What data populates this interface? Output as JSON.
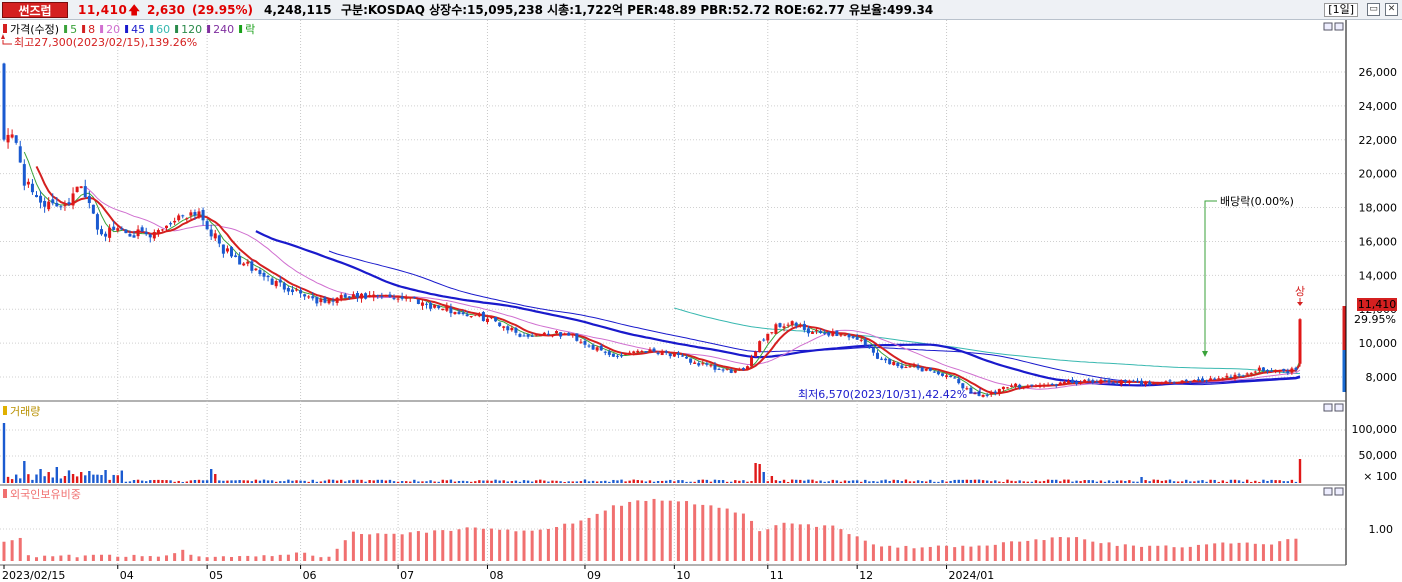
{
  "header": {
    "stock_name": "썬즈럽",
    "price": "11,410",
    "arrow": "🡅",
    "change": "2,630",
    "rate": "(29.95%)",
    "volume": "4,248,115",
    "info": "구분:KOSDAQ 상장수:15,095,238 시총:1,722억 PER:48.89 PBR:52.72 ROE:62.77 유보율:499.34",
    "period": "[1일]",
    "win_min": "▭",
    "win_close": "✕"
  },
  "price_panel": {
    "legend": [
      {
        "label": "가격(수정)",
        "color": "#d42020"
      },
      {
        "label": "5",
        "color": "#3aa23a"
      },
      {
        "label": "8",
        "color": "#d42020"
      },
      {
        "label": "20",
        "color": "#d070d0"
      },
      {
        "label": "45",
        "color": "#1a1acc"
      },
      {
        "label": "60",
        "color": "#38b8b0"
      },
      {
        "label": "120",
        "color": "#2a8a4a"
      },
      {
        "label": "240",
        "color": "#8030a0"
      },
      {
        "label": "락",
        "color": "#18a018"
      }
    ],
    "high_note": "최고27,300(2023/02/15),139.26%",
    "low_note": "최저6,570(2023/10/31),42.42%",
    "dividend_note": "배당락(0.00%)",
    "limit_up_label": "상",
    "price_tag": "11,410",
    "rate_tag": "29.95%",
    "y_ticks": [
      "26,000",
      "24,000",
      "22,000",
      "20,000",
      "18,000",
      "16,000",
      "14,000",
      "12,000",
      "10,000",
      "8,000"
    ],
    "y_tick_values": [
      26000,
      24000,
      22000,
      20000,
      18000,
      16000,
      14000,
      12000,
      10000,
      8000
    ]
  },
  "volume_panel": {
    "legend": "거래량",
    "y_ticks": [
      "100,000",
      "50,000",
      "× 100"
    ]
  },
  "foreign_panel": {
    "legend": "외국인보유비중",
    "y_ticks": [
      "1.00"
    ]
  },
  "x_axis": {
    "labels": [
      "2023/02/15",
      "04",
      "05",
      "06",
      "07",
      "08",
      "09",
      "10",
      "11",
      "12",
      "2024/01"
    ]
  },
  "chart_data": {
    "type": "candlestick",
    "close_anchors": [
      [
        0,
        22400
      ],
      [
        3,
        22000
      ],
      [
        5,
        19500
      ],
      [
        8,
        18600
      ],
      [
        12,
        18000
      ],
      [
        16,
        18400
      ],
      [
        18,
        19500
      ],
      [
        20,
        18600
      ],
      [
        24,
        16400
      ],
      [
        28,
        16800
      ],
      [
        32,
        16500
      ],
      [
        36,
        16200
      ],
      [
        40,
        17000
      ],
      [
        44,
        17600
      ],
      [
        48,
        17800
      ],
      [
        50,
        16900
      ],
      [
        54,
        15500
      ],
      [
        58,
        14800
      ],
      [
        62,
        14300
      ],
      [
        66,
        13600
      ],
      [
        72,
        13100
      ],
      [
        78,
        12400
      ],
      [
        84,
        12700
      ],
      [
        92,
        12700
      ],
      [
        100,
        12700
      ],
      [
        104,
        12300
      ],
      [
        112,
        11800
      ],
      [
        120,
        11400
      ],
      [
        128,
        10400
      ],
      [
        134,
        10600
      ],
      [
        140,
        10400
      ],
      [
        146,
        9600
      ],
      [
        150,
        9200
      ],
      [
        156,
        9600
      ],
      [
        162,
        9500
      ],
      [
        168,
        9000
      ],
      [
        176,
        8400
      ],
      [
        182,
        8300
      ],
      [
        186,
        10100
      ],
      [
        190,
        11000
      ],
      [
        194,
        11200
      ],
      [
        198,
        10600
      ],
      [
        204,
        10600
      ],
      [
        210,
        10300
      ],
      [
        216,
        9000
      ],
      [
        222,
        8600
      ],
      [
        228,
        8400
      ],
      [
        234,
        7800
      ],
      [
        238,
        7100
      ],
      [
        242,
        6900
      ],
      [
        248,
        7500
      ],
      [
        256,
        7500
      ],
      [
        264,
        7700
      ],
      [
        272,
        7700
      ],
      [
        280,
        7650
      ],
      [
        288,
        7700
      ],
      [
        294,
        7750
      ],
      [
        300,
        8000
      ],
      [
        306,
        8200
      ],
      [
        310,
        8500
      ],
      [
        314,
        8300
      ],
      [
        318,
        8460
      ]
    ],
    "last_close": 11410,
    "prev_close": 8780,
    "ma_labels": [
      "5",
      "8",
      "20",
      "45",
      "60",
      "120",
      "240"
    ],
    "volume_hundreds": [
      120000,
      35000,
      28000,
      30000,
      20000,
      45000
    ],
    "foreign_ratio_range": [
      0.8,
      2.0
    ]
  }
}
